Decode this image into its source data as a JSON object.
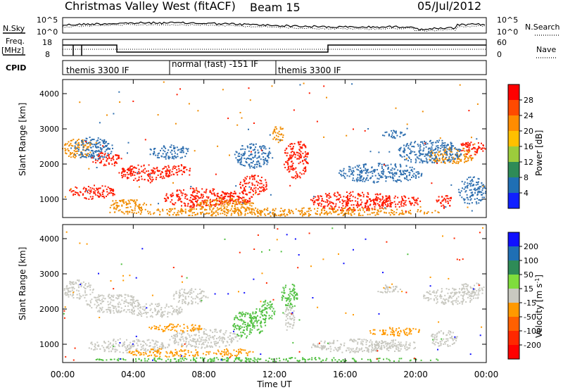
{
  "header": {
    "title": "Christmas Valley West (fitACF)",
    "beam": "Beam 15",
    "date": "05/Jul/2012"
  },
  "top_panels": {
    "nsky": {
      "label": "N.Sky",
      "tick_top": "10^5",
      "tick_bottom": "10^0",
      "right_top": "10^5",
      "right_bottom": "10^0",
      "right_label": "N.Search"
    },
    "freq": {
      "label_line1": "Freq.",
      "label_line2": "[MHz]",
      "tick_top": "18",
      "tick_bottom": "8",
      "right_top": "60",
      "right_bottom": "0",
      "right_label": "Nave"
    },
    "cpid": {
      "label": "CPID",
      "segments": [
        "themis 3300 IF",
        "normal (fast) -151 IF",
        "themis 3300 IF"
      ]
    }
  },
  "chart_data": [
    {
      "type": "heatmap",
      "name": "power",
      "ylabel": "Slant Range [km]",
      "yticks": [
        "4000",
        "3000",
        "2000",
        "1000"
      ],
      "colorbar_label": "Power [dB]",
      "colorbar_ticks": [
        "28",
        "24",
        "20",
        "16",
        "12",
        "8",
        "4"
      ],
      "colorbar_colors": [
        "#ff0000",
        "#ff4a00",
        "#ff8c00",
        "#ffc000",
        "#9ccc3c",
        "#2e8b57",
        "#1f6fb4",
        "#1020ff"
      ],
      "colors": {
        "high": "#ff1a00",
        "mid": "#f08c00",
        "low": "#3070b0"
      }
    },
    {
      "type": "heatmap",
      "name": "velocity",
      "ylabel": "Slant Range [km]",
      "yticks": [
        "4000",
        "3000",
        "2000",
        "1000"
      ],
      "colorbar_label": "Velocity [m s",
      "colorbar_label_sup": "-1",
      "colorbar_label_end": "]",
      "colorbar_ticks": [
        "200",
        "100",
        "50",
        "15",
        "-15",
        "-50",
        "-100",
        "-200"
      ],
      "colorbar_colors": [
        "#1010ff",
        "#1f6fb4",
        "#2e8b57",
        "#7fdd3c",
        "#c8c8c0",
        "#ff9900",
        "#ff6000",
        "#ff2800",
        "#ff0000"
      ],
      "colors": {
        "ground": "#c8c8c0",
        "pos": "#50c040",
        "neg": "#ff9900"
      }
    }
  ],
  "xaxis": {
    "ticks": [
      "00:00",
      "04:00",
      "08:00",
      "12:00",
      "16:00",
      "20:00",
      "00:00"
    ],
    "label": "Time UT"
  }
}
